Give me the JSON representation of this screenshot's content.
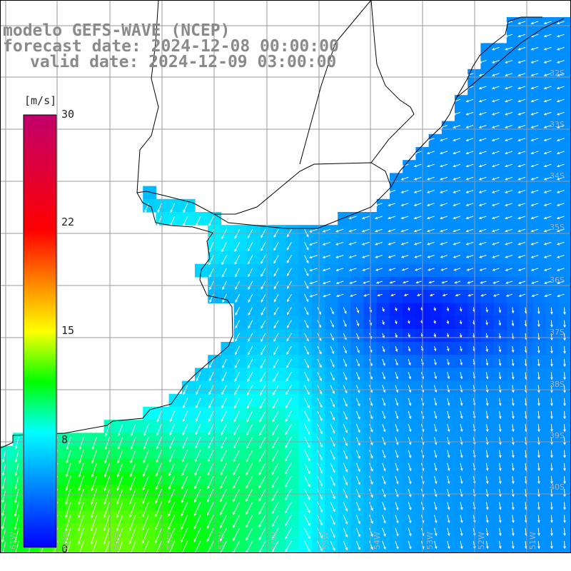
{
  "title": {
    "line1": "modelo GEFS-WAVE (NCEP)",
    "line2": "forecast date: 2024-12-08 00:00:00",
    "line3": "valid date: 2024-12-09 03:00:00"
  },
  "colorbar": {
    "unit": "[m/s]",
    "ticks": [
      "30",
      "22",
      "15",
      "8",
      "0"
    ],
    "min": 0,
    "max": 30,
    "colors": [
      "#0000ff",
      "#00ffff",
      "#00ff00",
      "#ffff00",
      "#ff8000",
      "#ff0000",
      "#c0006c"
    ]
  },
  "latitude_labels": [
    "32S",
    "33S",
    "34S",
    "35S",
    "36S",
    "37S",
    "38S",
    "39S",
    "40S"
  ],
  "longitude_labels": [
    "61W",
    "60W",
    "59W",
    "58W",
    "57W",
    "56W",
    "55W",
    "54W",
    "53W",
    "52W",
    "51W"
  ],
  "colors": {
    "land": "#ffffff",
    "grid": "#999999",
    "coast": "#000000",
    "arrows": "#ffffff",
    "title_text": "#8a8a8a"
  }
}
